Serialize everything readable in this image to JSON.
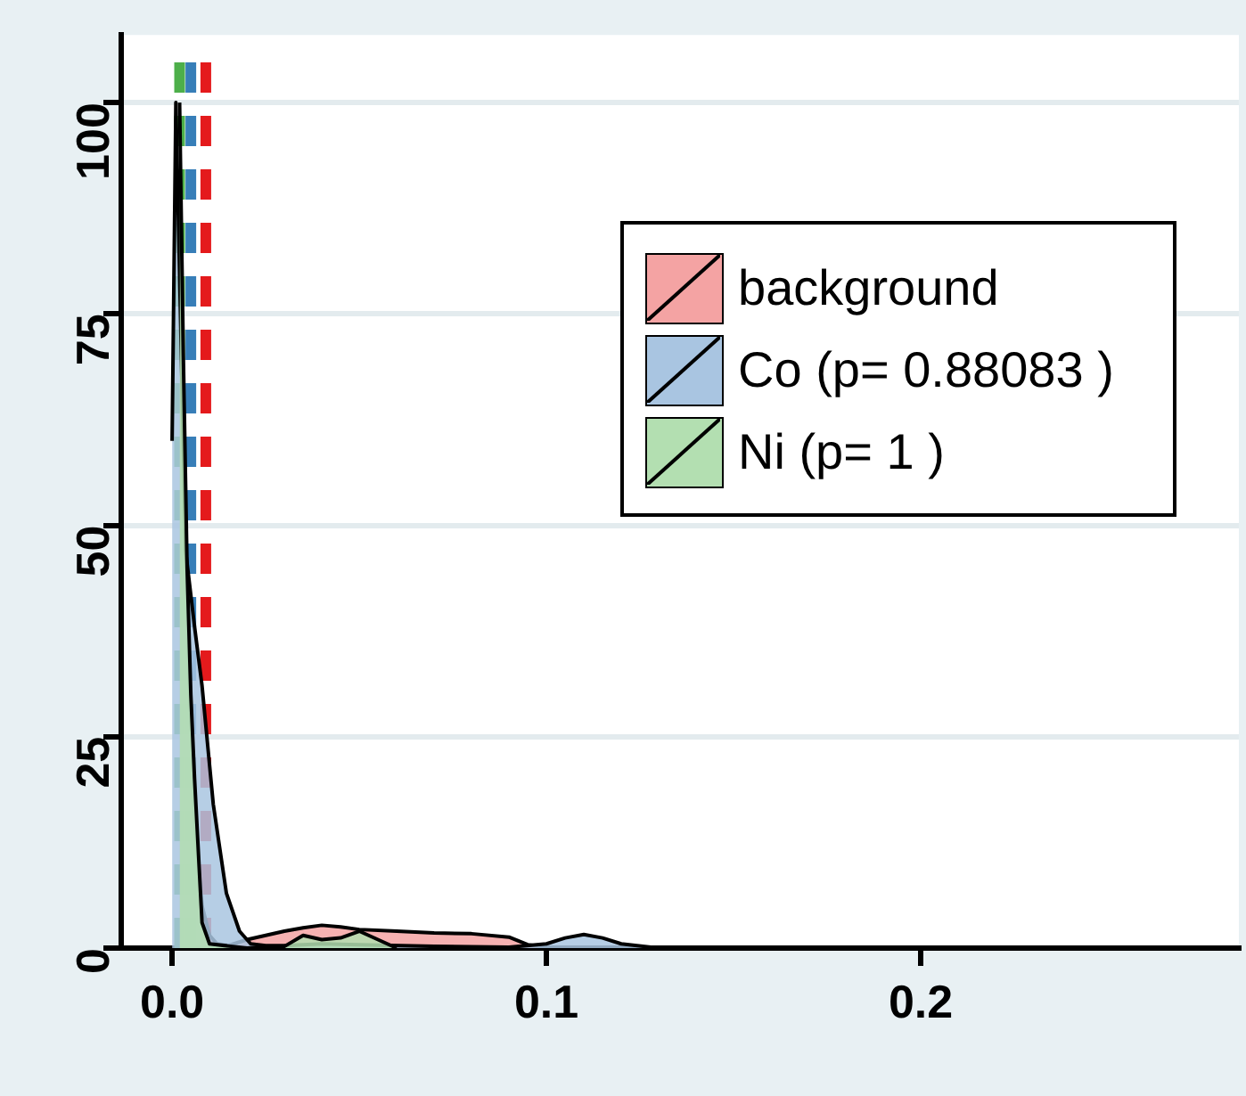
{
  "chart_data": {
    "type": "area",
    "xlim": [
      -0.0136,
      0.285
    ],
    "xticks": [
      {
        "value": 0,
        "label": "0.0"
      },
      0.1,
      0.2
    ],
    "ylim": [
      0,
      108
    ],
    "yticks": [
      0,
      25,
      50,
      75,
      100
    ],
    "grid": "y",
    "legend": "top right",
    "line_style": "solid",
    "marker": "none",
    "series": [
      {
        "name": "background",
        "color": "#f4a3a3",
        "x": [
          0.002,
          0.004,
          0.006,
          0.008,
          0.01,
          0.012,
          0.015,
          0.02,
          0.025,
          0.03,
          0.035,
          0.04,
          0.045,
          0.05,
          0.06,
          0.07,
          0.08,
          0.09,
          0.095,
          0.1,
          0.12,
          0.15,
          0.2,
          0.27
        ],
        "values": [
          90,
          40,
          15,
          5,
          1.5,
          0.5,
          0.3,
          1,
          1.5,
          2,
          2.4,
          2.7,
          2.5,
          2.2,
          2,
          1.8,
          1.7,
          1.3,
          0.4,
          0.1,
          0,
          0,
          0,
          0
        ]
      },
      {
        "name": "Co (p= 0.88083 )",
        "color": "#a9c5e1",
        "x": [
          0,
          0.001,
          0.002,
          0.0036,
          0.006,
          0.008,
          0.011,
          0.0145,
          0.018,
          0.021,
          0.025,
          0.03,
          0.04,
          0.05,
          0.07,
          0.09,
          0.1,
          0.105,
          0.11,
          0.115,
          0.12,
          0.13
        ],
        "values": [
          60,
          100,
          null,
          47,
          38,
          31,
          17,
          6.5,
          2,
          0.5,
          0.3,
          0.3,
          0.5,
          0.4,
          0.2,
          0.1,
          0.5,
          1.2,
          1.6,
          1.2,
          0.5,
          0
        ]
      },
      {
        "name": "Ni (p= 1 )",
        "color": "#b3dfb1",
        "x": [
          0.002,
          0.003,
          0.004,
          0.005,
          0.006,
          0.008,
          0.01,
          0.02,
          0.03,
          0.035,
          0.04,
          0.045,
          0.05,
          0.055,
          0.06
        ],
        "values": [
          100,
          70,
          45,
          30,
          20,
          3,
          0.5,
          0,
          0.2,
          1.5,
          1,
          1.2,
          2,
          1,
          0
        ]
      }
    ],
    "ref_lines": [
      {
        "axis": "x",
        "value": 0.009,
        "color": "#e41a1c",
        "line_style": "dashed"
      },
      {
        "axis": "x",
        "value": 0.005,
        "color": "#377eb8",
        "line_style": "dashed"
      },
      {
        "axis": "x",
        "value": 0.002,
        "color": "#4daf4a",
        "line_style": "dashed"
      }
    ]
  }
}
